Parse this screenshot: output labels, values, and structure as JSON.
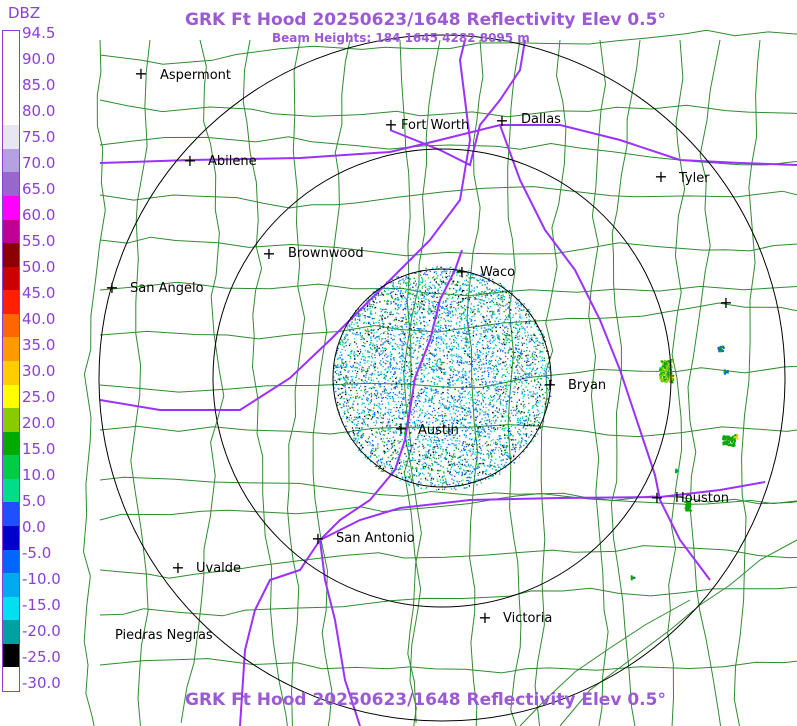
{
  "header": {
    "title": "GRK Ft Hood 20250623/1648 Reflectivity Elev 0.5°",
    "beam_heights": "Beam Heights: 184 1645 4282 8095 m",
    "footer_title": "GRK Ft Hood 20250623/1648 Reflectivity Elev 0.5°"
  },
  "legend": {
    "unit": "DBZ",
    "labels": [
      "94.5",
      "90.0",
      "85.0",
      "80.0",
      "75.0",
      "70.0",
      "65.0",
      "60.0",
      "55.0",
      "50.0",
      "45.0",
      "40.0",
      "35.0",
      "30.0",
      "25.0",
      "20.0",
      "15.0",
      "10.0",
      "5.0",
      "0.0",
      "-5.0",
      "-10.0",
      "-15.0",
      "-20.0",
      "-25.0",
      "-30.0"
    ],
    "colors": [
      "#ffffff",
      "#ffffff",
      "#ffffff",
      "#ffffff",
      "#e6e6f5",
      "#b5a0e0",
      "#9966cc",
      "#ff00ff",
      "#c00090",
      "#8b0000",
      "#cc0000",
      "#ff2000",
      "#ff6600",
      "#ff9900",
      "#ffcc00",
      "#ffff00",
      "#88cc00",
      "#00aa00",
      "#00cc44",
      "#00dd88",
      "#1f4fff",
      "#0000cc",
      "#0066ff",
      "#00aaee",
      "#00e0ee",
      "#00a0a0",
      "#000000",
      "#ffffff"
    ]
  },
  "cities": [
    {
      "name": "Aspermont"
    },
    {
      "name": "Fort Worth"
    },
    {
      "name": "Dallas"
    },
    {
      "name": "Abilene"
    },
    {
      "name": "Tyler"
    },
    {
      "name": "Brownwood"
    },
    {
      "name": "Waco"
    },
    {
      "name": "San Angelo"
    },
    {
      "name": "Bryan"
    },
    {
      "name": "Austin"
    },
    {
      "name": "Houston"
    },
    {
      "name": "San Antonio"
    },
    {
      "name": "Uvalde"
    },
    {
      "name": "Piedras Negras"
    },
    {
      "name": "Victoria"
    }
  ],
  "range_rings": 3,
  "colors": {
    "title": "#9b59d6",
    "county_lines": "#2e8b2e",
    "highways": "#9b30ff",
    "rings": "#000000"
  }
}
